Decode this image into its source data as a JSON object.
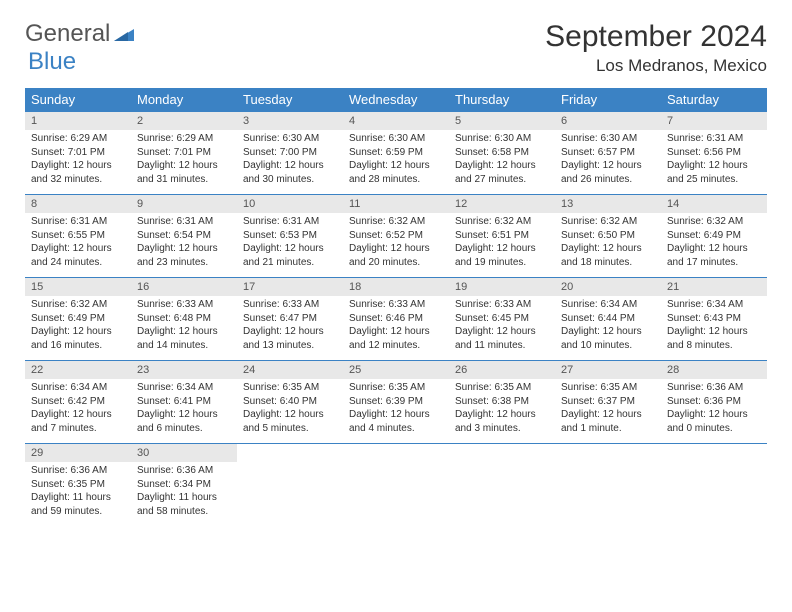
{
  "logo": {
    "general": "General",
    "blue": "Blue"
  },
  "title": "September 2024",
  "location": "Los Medranos, Mexico",
  "colors": {
    "header_bg": "#3b82c4",
    "header_text": "#ffffff",
    "daynum_bg": "#e8e8e8",
    "border": "#3b82c4",
    "text": "#333333"
  },
  "dayNames": [
    "Sunday",
    "Monday",
    "Tuesday",
    "Wednesday",
    "Thursday",
    "Friday",
    "Saturday"
  ],
  "weeks": [
    {
      "nums": [
        "1",
        "2",
        "3",
        "4",
        "5",
        "6",
        "7"
      ],
      "cells": [
        {
          "sunrise": "Sunrise: 6:29 AM",
          "sunset": "Sunset: 7:01 PM",
          "d1": "Daylight: 12 hours",
          "d2": "and 32 minutes."
        },
        {
          "sunrise": "Sunrise: 6:29 AM",
          "sunset": "Sunset: 7:01 PM",
          "d1": "Daylight: 12 hours",
          "d2": "and 31 minutes."
        },
        {
          "sunrise": "Sunrise: 6:30 AM",
          "sunset": "Sunset: 7:00 PM",
          "d1": "Daylight: 12 hours",
          "d2": "and 30 minutes."
        },
        {
          "sunrise": "Sunrise: 6:30 AM",
          "sunset": "Sunset: 6:59 PM",
          "d1": "Daylight: 12 hours",
          "d2": "and 28 minutes."
        },
        {
          "sunrise": "Sunrise: 6:30 AM",
          "sunset": "Sunset: 6:58 PM",
          "d1": "Daylight: 12 hours",
          "d2": "and 27 minutes."
        },
        {
          "sunrise": "Sunrise: 6:30 AM",
          "sunset": "Sunset: 6:57 PM",
          "d1": "Daylight: 12 hours",
          "d2": "and 26 minutes."
        },
        {
          "sunrise": "Sunrise: 6:31 AM",
          "sunset": "Sunset: 6:56 PM",
          "d1": "Daylight: 12 hours",
          "d2": "and 25 minutes."
        }
      ]
    },
    {
      "nums": [
        "8",
        "9",
        "10",
        "11",
        "12",
        "13",
        "14"
      ],
      "cells": [
        {
          "sunrise": "Sunrise: 6:31 AM",
          "sunset": "Sunset: 6:55 PM",
          "d1": "Daylight: 12 hours",
          "d2": "and 24 minutes."
        },
        {
          "sunrise": "Sunrise: 6:31 AM",
          "sunset": "Sunset: 6:54 PM",
          "d1": "Daylight: 12 hours",
          "d2": "and 23 minutes."
        },
        {
          "sunrise": "Sunrise: 6:31 AM",
          "sunset": "Sunset: 6:53 PM",
          "d1": "Daylight: 12 hours",
          "d2": "and 21 minutes."
        },
        {
          "sunrise": "Sunrise: 6:32 AM",
          "sunset": "Sunset: 6:52 PM",
          "d1": "Daylight: 12 hours",
          "d2": "and 20 minutes."
        },
        {
          "sunrise": "Sunrise: 6:32 AM",
          "sunset": "Sunset: 6:51 PM",
          "d1": "Daylight: 12 hours",
          "d2": "and 19 minutes."
        },
        {
          "sunrise": "Sunrise: 6:32 AM",
          "sunset": "Sunset: 6:50 PM",
          "d1": "Daylight: 12 hours",
          "d2": "and 18 minutes."
        },
        {
          "sunrise": "Sunrise: 6:32 AM",
          "sunset": "Sunset: 6:49 PM",
          "d1": "Daylight: 12 hours",
          "d2": "and 17 minutes."
        }
      ]
    },
    {
      "nums": [
        "15",
        "16",
        "17",
        "18",
        "19",
        "20",
        "21"
      ],
      "cells": [
        {
          "sunrise": "Sunrise: 6:32 AM",
          "sunset": "Sunset: 6:49 PM",
          "d1": "Daylight: 12 hours",
          "d2": "and 16 minutes."
        },
        {
          "sunrise": "Sunrise: 6:33 AM",
          "sunset": "Sunset: 6:48 PM",
          "d1": "Daylight: 12 hours",
          "d2": "and 14 minutes."
        },
        {
          "sunrise": "Sunrise: 6:33 AM",
          "sunset": "Sunset: 6:47 PM",
          "d1": "Daylight: 12 hours",
          "d2": "and 13 minutes."
        },
        {
          "sunrise": "Sunrise: 6:33 AM",
          "sunset": "Sunset: 6:46 PM",
          "d1": "Daylight: 12 hours",
          "d2": "and 12 minutes."
        },
        {
          "sunrise": "Sunrise: 6:33 AM",
          "sunset": "Sunset: 6:45 PM",
          "d1": "Daylight: 12 hours",
          "d2": "and 11 minutes."
        },
        {
          "sunrise": "Sunrise: 6:34 AM",
          "sunset": "Sunset: 6:44 PM",
          "d1": "Daylight: 12 hours",
          "d2": "and 10 minutes."
        },
        {
          "sunrise": "Sunrise: 6:34 AM",
          "sunset": "Sunset: 6:43 PM",
          "d1": "Daylight: 12 hours",
          "d2": "and 8 minutes."
        }
      ]
    },
    {
      "nums": [
        "22",
        "23",
        "24",
        "25",
        "26",
        "27",
        "28"
      ],
      "cells": [
        {
          "sunrise": "Sunrise: 6:34 AM",
          "sunset": "Sunset: 6:42 PM",
          "d1": "Daylight: 12 hours",
          "d2": "and 7 minutes."
        },
        {
          "sunrise": "Sunrise: 6:34 AM",
          "sunset": "Sunset: 6:41 PM",
          "d1": "Daylight: 12 hours",
          "d2": "and 6 minutes."
        },
        {
          "sunrise": "Sunrise: 6:35 AM",
          "sunset": "Sunset: 6:40 PM",
          "d1": "Daylight: 12 hours",
          "d2": "and 5 minutes."
        },
        {
          "sunrise": "Sunrise: 6:35 AM",
          "sunset": "Sunset: 6:39 PM",
          "d1": "Daylight: 12 hours",
          "d2": "and 4 minutes."
        },
        {
          "sunrise": "Sunrise: 6:35 AM",
          "sunset": "Sunset: 6:38 PM",
          "d1": "Daylight: 12 hours",
          "d2": "and 3 minutes."
        },
        {
          "sunrise": "Sunrise: 6:35 AM",
          "sunset": "Sunset: 6:37 PM",
          "d1": "Daylight: 12 hours",
          "d2": "and 1 minute."
        },
        {
          "sunrise": "Sunrise: 6:36 AM",
          "sunset": "Sunset: 6:36 PM",
          "d1": "Daylight: 12 hours",
          "d2": "and 0 minutes."
        }
      ]
    },
    {
      "nums": [
        "29",
        "30",
        "",
        "",
        "",
        "",
        ""
      ],
      "cells": [
        {
          "sunrise": "Sunrise: 6:36 AM",
          "sunset": "Sunset: 6:35 PM",
          "d1": "Daylight: 11 hours",
          "d2": "and 59 minutes."
        },
        {
          "sunrise": "Sunrise: 6:36 AM",
          "sunset": "Sunset: 6:34 PM",
          "d1": "Daylight: 11 hours",
          "d2": "and 58 minutes."
        },
        null,
        null,
        null,
        null,
        null
      ]
    }
  ]
}
